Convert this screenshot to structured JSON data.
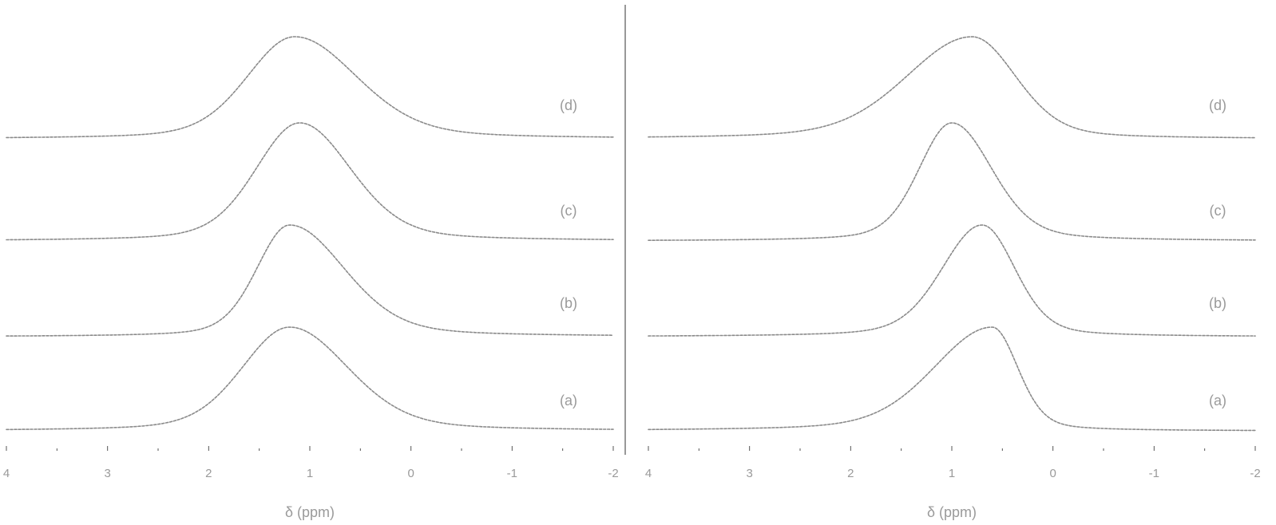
{
  "chart_data": [
    {
      "type": "line",
      "panel": "left",
      "xlabel": "δ (ppm)",
      "ylabel": "",
      "xlim": [
        4,
        -2
      ],
      "x_ticks": [
        4,
        3,
        2,
        1,
        0,
        -1,
        -2
      ],
      "x_tick_labels": [
        "4",
        "3",
        "2",
        "1",
        "0",
        "-1",
        "-2"
      ],
      "series": [
        {
          "name": "(d)",
          "label": "(d)",
          "center": 1.15,
          "width_left": 0.65,
          "width_right": 0.85,
          "amplitude": 1.0
        },
        {
          "name": "(c)",
          "label": "(c)",
          "center": 1.1,
          "width_left": 0.6,
          "width_right": 0.7,
          "amplitude": 1.0
        },
        {
          "name": "(b)",
          "label": "(b)",
          "center": 1.2,
          "width_left": 0.45,
          "width_right": 0.75,
          "amplitude": 1.0
        },
        {
          "name": "(a)",
          "label": "(a)",
          "center": 1.2,
          "width_left": 0.65,
          "width_right": 0.8,
          "amplitude": 1.0
        }
      ]
    },
    {
      "type": "line",
      "panel": "right",
      "xlabel": "δ (ppm)",
      "ylabel": "",
      "xlim": [
        4,
        -2
      ],
      "x_ticks": [
        4,
        3,
        2,
        1,
        0,
        -1,
        -2
      ],
      "x_tick_labels": [
        "4",
        "3",
        "2",
        "1",
        "0",
        "-1",
        "-2"
      ],
      "series": [
        {
          "name": "(d)",
          "label": "(d)",
          "center": 0.8,
          "width_left": 0.9,
          "width_right": 0.6,
          "amplitude": 1.0
        },
        {
          "name": "(c)",
          "label": "(c)",
          "center": 1.0,
          "width_left": 0.45,
          "width_right": 0.55,
          "amplitude": 1.0
        },
        {
          "name": "(b)",
          "label": "(b)",
          "center": 0.7,
          "width_left": 0.55,
          "width_right": 0.45,
          "amplitude": 1.0
        },
        {
          "name": "(a)",
          "label": "(a)",
          "center": 0.6,
          "width_left": 0.8,
          "width_right": 0.35,
          "amplitude": 1.0
        }
      ]
    }
  ]
}
